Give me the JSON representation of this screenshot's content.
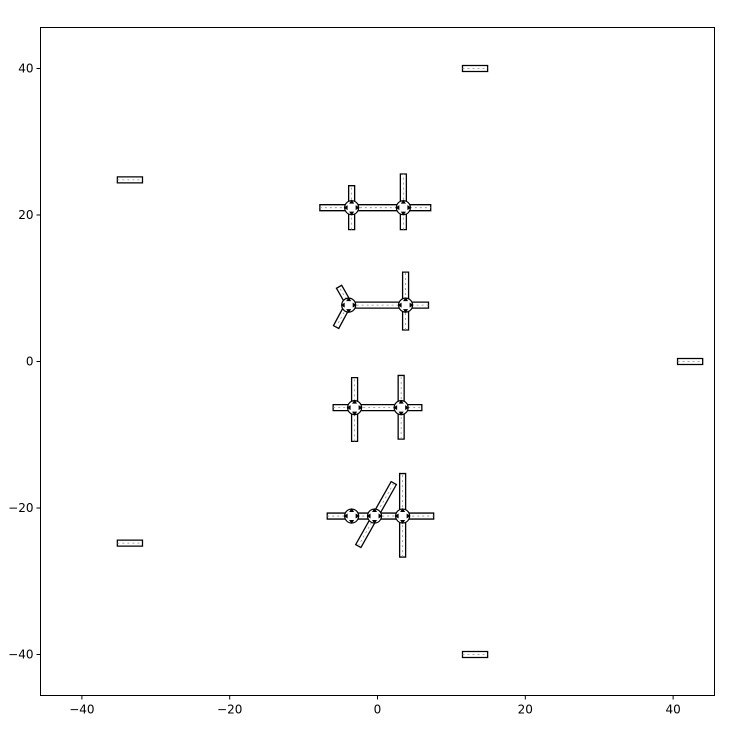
{
  "chart_data": {
    "type": "scatter",
    "title": "",
    "xlabel": "",
    "ylabel": "",
    "xlim": [
      -45.6,
      45.6
    ],
    "ylim": [
      -45.6,
      45.6
    ],
    "x_ticks": [
      -40,
      -20,
      0,
      20,
      40
    ],
    "y_ticks": [
      40,
      20,
      0,
      -20,
      -40
    ],
    "x_tick_labels": [
      "−40",
      "−20",
      "0",
      "20",
      "40"
    ],
    "y_tick_labels": [
      "40",
      "20",
      "0",
      "−20",
      "−40"
    ],
    "grid": false,
    "segments": [
      {
        "x1": -35.2,
        "y1": 24.8,
        "x2": -31.8,
        "y2": 24.8
      },
      {
        "x1": -35.2,
        "y1": -24.8,
        "x2": -31.8,
        "y2": -24.8
      },
      {
        "x1": 11.5,
        "y1": 40.0,
        "x2": 14.9,
        "y2": 40.0
      },
      {
        "x1": 11.5,
        "y1": -40.0,
        "x2": 14.9,
        "y2": -40.0
      },
      {
        "x1": 40.6,
        "y1": 0.0,
        "x2": 44.0,
        "y2": 0.0
      },
      {
        "x1": -7.8,
        "y1": 21.0,
        "x2": 7.2,
        "y2": 21.0
      },
      {
        "x1": -3.5,
        "y1": 18.0,
        "x2": -3.5,
        "y2": 24.0
      },
      {
        "x1": 3.5,
        "y1": 18.0,
        "x2": 3.5,
        "y2": 25.6
      },
      {
        "x1": -3.5,
        "y1": 7.7,
        "x2": 6.9,
        "y2": 7.7
      },
      {
        "x1": 3.8,
        "y1": 4.3,
        "x2": 3.8,
        "y2": 12.2
      },
      {
        "x1": -3.9,
        "y1": 7.9,
        "x2": -5.6,
        "y2": 4.7
      },
      {
        "x1": -3.9,
        "y1": 7.9,
        "x2": -5.2,
        "y2": 10.2
      },
      {
        "x1": -6.0,
        "y1": -6.3,
        "x2": 6.0,
        "y2": -6.3
      },
      {
        "x1": -3.1,
        "y1": -10.9,
        "x2": -3.1,
        "y2": -2.2
      },
      {
        "x1": 3.2,
        "y1": -10.6,
        "x2": 3.2,
        "y2": -1.9
      },
      {
        "x1": -6.8,
        "y1": -21.1,
        "x2": 7.6,
        "y2": -21.1
      },
      {
        "x1": 3.4,
        "y1": -26.7,
        "x2": 3.4,
        "y2": -15.3
      },
      {
        "x1": -2.6,
        "y1": -25.2,
        "x2": 2.2,
        "y2": -16.6
      }
    ],
    "nodes": [
      {
        "x": -3.5,
        "y": 21.0
      },
      {
        "x": 3.5,
        "y": 21.0
      },
      {
        "x": -3.9,
        "y": 7.7
      },
      {
        "x": 3.8,
        "y": 7.7
      },
      {
        "x": -3.1,
        "y": -6.3
      },
      {
        "x": 3.2,
        "y": -6.3
      },
      {
        "x": -3.5,
        "y": -21.1
      },
      {
        "x": -0.4,
        "y": -21.1
      },
      {
        "x": 3.4,
        "y": -21.1
      }
    ]
  }
}
